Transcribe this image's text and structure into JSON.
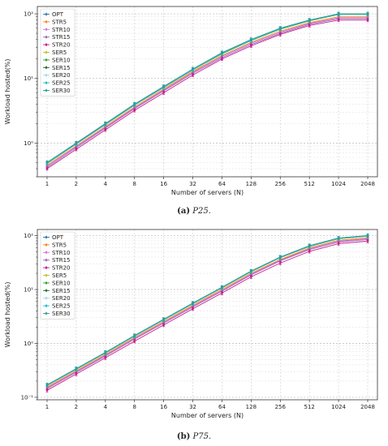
{
  "chart_data": [
    {
      "type": "line",
      "caption_letter": "(a)",
      "caption_name": "P25.",
      "xlabel": "Number of servers (N)",
      "ylabel": "Workload hosted(%)",
      "yscale": "log",
      "ylim": [
        0.3,
        130
      ],
      "grid": true,
      "legend": "top-left",
      "categories": [
        "1",
        "2",
        "4",
        "8",
        "16",
        "32",
        "64",
        "128",
        "256",
        "512",
        "1024",
        "2048"
      ],
      "yticks": [
        {
          "value": 1,
          "label": "10⁰"
        },
        {
          "value": 10,
          "label": "10¹"
        },
        {
          "value": 100,
          "label": "10²"
        }
      ],
      "series": [
        {
          "name": "OPT",
          "color": "#1f77b4",
          "values": [
            0.5,
            1.0,
            2.0,
            4.0,
            7.5,
            14,
            25,
            40,
            60,
            80,
            100,
            100
          ]
        },
        {
          "name": "STR5",
          "color": "#ff7f0e",
          "values": [
            0.45,
            0.9,
            1.8,
            3.6,
            6.8,
            12.8,
            22.5,
            36,
            54,
            73,
            90,
            90
          ]
        },
        {
          "name": "STR10",
          "color": "#d670d6",
          "values": [
            0.44,
            0.88,
            1.75,
            3.5,
            6.6,
            12.4,
            22,
            35,
            52,
            71,
            87,
            87
          ]
        },
        {
          "name": "STR15",
          "color": "#9467bd",
          "values": [
            0.42,
            0.85,
            1.7,
            3.4,
            6.4,
            12,
            21,
            33.5,
            50,
            69,
            84,
            84
          ]
        },
        {
          "name": "STR20",
          "color": "#c9178c",
          "values": [
            0.4,
            0.8,
            1.6,
            3.2,
            6.0,
            11.3,
            20,
            32,
            48,
            66,
            80,
            80
          ]
        },
        {
          "name": "SER5",
          "color": "#bcbd22",
          "values": [
            0.48,
            0.96,
            1.92,
            3.85,
            7.2,
            13.5,
            24,
            38.5,
            58,
            78,
            98,
            98
          ]
        },
        {
          "name": "SER10",
          "color": "#2ca02c",
          "values": [
            0.48,
            0.96,
            1.92,
            3.85,
            7.2,
            13.5,
            24,
            38.5,
            58,
            78,
            98,
            98
          ]
        },
        {
          "name": "SER15",
          "color": "#1a6b1a",
          "values": [
            0.49,
            0.97,
            1.95,
            3.9,
            7.3,
            13.7,
            24.5,
            39,
            59,
            79,
            99,
            99
          ]
        },
        {
          "name": "SER20",
          "color": "#9edae5",
          "values": [
            0.49,
            0.97,
            1.95,
            3.9,
            7.3,
            13.7,
            24.5,
            39,
            59,
            79,
            99,
            99
          ]
        },
        {
          "name": "SER25",
          "color": "#17becf",
          "values": [
            0.5,
            0.98,
            1.97,
            3.95,
            7.4,
            13.9,
            24.8,
            39.5,
            59.5,
            79.5,
            99.5,
            99.5
          ]
        },
        {
          "name": "SER30",
          "color": "#2a9a9a",
          "values": [
            0.5,
            0.99,
            1.99,
            3.98,
            7.45,
            14,
            25,
            40,
            60,
            80,
            100,
            100
          ]
        }
      ]
    },
    {
      "type": "line",
      "caption_letter": "(b)",
      "caption_name": "P75.",
      "xlabel": "Number of servers (N)",
      "ylabel": "Workload hosted(%)",
      "yscale": "log",
      "ylim": [
        0.09,
        130
      ],
      "grid": true,
      "legend": "top-left",
      "categories": [
        "1",
        "2",
        "4",
        "8",
        "16",
        "32",
        "64",
        "128",
        "256",
        "512",
        "1024",
        "2048"
      ],
      "yticks": [
        {
          "value": 0.1,
          "label": "10⁻¹"
        },
        {
          "value": 1,
          "label": "10⁰"
        },
        {
          "value": 10,
          "label": "10¹"
        },
        {
          "value": 100,
          "label": "10²"
        }
      ],
      "series": [
        {
          "name": "OPT",
          "color": "#1f77b4",
          "values": [
            0.17,
            0.34,
            0.68,
            1.4,
            2.8,
            5.6,
            11,
            22,
            40,
            65,
            90,
            100
          ]
        },
        {
          "name": "STR5",
          "color": "#ff7f0e",
          "values": [
            0.155,
            0.31,
            0.62,
            1.28,
            2.55,
            5.1,
            10,
            20,
            36,
            59,
            82,
            91
          ]
        },
        {
          "name": "STR10",
          "color": "#d670d6",
          "values": [
            0.15,
            0.3,
            0.6,
            1.24,
            2.45,
            4.9,
            9.6,
            19.2,
            35,
            57,
            79,
            88
          ]
        },
        {
          "name": "STR15",
          "color": "#9467bd",
          "values": [
            0.145,
            0.29,
            0.58,
            1.2,
            2.38,
            4.75,
            9.3,
            18.6,
            34,
            55,
            76,
            85
          ]
        },
        {
          "name": "STR20",
          "color": "#c9178c",
          "values": [
            0.135,
            0.27,
            0.54,
            1.1,
            2.2,
            4.4,
            8.6,
            17.2,
            31,
            51,
            71,
            79
          ]
        },
        {
          "name": "SER5",
          "color": "#bcbd22",
          "values": [
            0.165,
            0.33,
            0.66,
            1.36,
            2.72,
            5.45,
            10.7,
            21.4,
            39,
            63,
            88,
            98
          ]
        },
        {
          "name": "SER10",
          "color": "#2ca02c",
          "values": [
            0.165,
            0.33,
            0.66,
            1.36,
            2.72,
            5.45,
            10.7,
            21.4,
            39,
            63,
            88,
            98
          ]
        },
        {
          "name": "SER15",
          "color": "#1a6b1a",
          "values": [
            0.167,
            0.335,
            0.67,
            1.38,
            2.76,
            5.52,
            10.85,
            21.7,
            39.5,
            64,
            89,
            99
          ]
        },
        {
          "name": "SER20",
          "color": "#9edae5",
          "values": [
            0.167,
            0.335,
            0.67,
            1.38,
            2.76,
            5.52,
            10.85,
            21.7,
            39.5,
            64,
            89,
            99
          ]
        },
        {
          "name": "SER25",
          "color": "#17becf",
          "values": [
            0.168,
            0.338,
            0.675,
            1.39,
            2.78,
            5.56,
            10.92,
            21.85,
            39.7,
            64.5,
            89.5,
            99.5
          ]
        },
        {
          "name": "SER30",
          "color": "#2a9a9a",
          "values": [
            0.17,
            0.34,
            0.68,
            1.4,
            2.8,
            5.6,
            11,
            22,
            40,
            65,
            90,
            100
          ]
        }
      ]
    }
  ]
}
